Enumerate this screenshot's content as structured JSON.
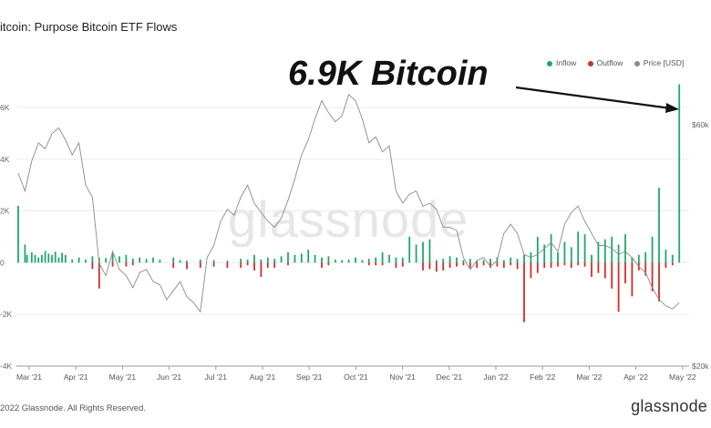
{
  "page": {
    "title": "itcoin: Purpose Bitcoin ETF Flows",
    "annotation": "6.9K Bitcoin",
    "watermark": "glassnode",
    "footer_copyright": "2022 Glassnode. All Rights Reserved.",
    "footer_logo": "glassnode"
  },
  "colors": {
    "inflow": "#1fa86b",
    "outflow": "#d42b2b",
    "price": "#8a8a8a",
    "grid": "#ececec",
    "axis": "#9a9a9a"
  },
  "chart_data": {
    "type": "bar",
    "title": "itcoin: Purpose Bitcoin ETF Flows",
    "legend": {
      "placement": "top-right",
      "entries": [
        "Inflow",
        "Outflow",
        "Price [USD]"
      ]
    },
    "x_ticks": [
      "Mar '21",
      "Apr '21",
      "May '21",
      "Jun '21",
      "Jul '21",
      "Aug '21",
      "Sep '21",
      "Oct '21",
      "Nov '21",
      "Dec '21",
      "Jan '22",
      "Feb '22",
      "Mar '22",
      "Apr '22",
      "May '22"
    ],
    "y_left": {
      "ticks": [
        "6K",
        "4K",
        "2K",
        "0",
        "-2K",
        "-4K"
      ],
      "range": [
        -4000,
        7200
      ]
    },
    "y_right": {
      "ticks": [
        "$60k",
        "$20k"
      ],
      "range": [
        20000,
        68000
      ]
    },
    "grid": true,
    "inflow_points": [
      {
        "week": 0,
        "value": 2200
      },
      {
        "week": 1,
        "value": 700
      },
      {
        "week": 1.3,
        "value": 300
      },
      {
        "week": 2,
        "value": 400
      },
      {
        "week": 2.5,
        "value": 300
      },
      {
        "week": 3,
        "value": 200
      },
      {
        "week": 3.5,
        "value": 300
      },
      {
        "week": 4,
        "value": 450
      },
      {
        "week": 4.5,
        "value": 350
      },
      {
        "week": 5,
        "value": 300
      },
      {
        "week": 5.5,
        "value": 420
      },
      {
        "week": 6,
        "value": 200
      },
      {
        "week": 6.5,
        "value": 380
      },
      {
        "week": 7,
        "value": 300
      },
      {
        "week": 8,
        "value": 120
      },
      {
        "week": 9,
        "value": 200
      },
      {
        "week": 10,
        "value": 120
      },
      {
        "week": 11,
        "value": 250
      },
      {
        "week": 12,
        "value": 200
      },
      {
        "week": 13,
        "value": 180
      },
      {
        "week": 14,
        "value": 350
      },
      {
        "week": 15,
        "value": 250
      },
      {
        "week": 16,
        "value": 300
      },
      {
        "week": 17,
        "value": 160
      },
      {
        "week": 18,
        "value": 200
      },
      {
        "week": 19,
        "value": 150
      },
      {
        "week": 20,
        "value": 200
      },
      {
        "week": 21,
        "value": 120
      },
      {
        "week": 23,
        "value": 200
      },
      {
        "week": 24,
        "value": 100
      },
      {
        "week": 25,
        "value": 80
      },
      {
        "week": 27,
        "value": 120
      },
      {
        "week": 29,
        "value": 100
      },
      {
        "week": 31,
        "value": 80
      },
      {
        "week": 33,
        "value": 150
      },
      {
        "week": 34,
        "value": 120
      },
      {
        "week": 35,
        "value": 300
      },
      {
        "week": 36,
        "value": 120
      },
      {
        "week": 37,
        "value": 200
      },
      {
        "week": 38,
        "value": 150
      },
      {
        "week": 39,
        "value": 250
      },
      {
        "week": 40,
        "value": 400
      },
      {
        "week": 41,
        "value": 300
      },
      {
        "week": 42,
        "value": 350
      },
      {
        "week": 43,
        "value": 500
      },
      {
        "week": 44,
        "value": 300
      },
      {
        "week": 45,
        "value": 200
      },
      {
        "week": 46,
        "value": 250
      },
      {
        "week": 47,
        "value": 120
      },
      {
        "week": 48,
        "value": 100
      },
      {
        "week": 49,
        "value": 120
      },
      {
        "week": 50,
        "value": 200
      },
      {
        "week": 51,
        "value": 100
      },
      {
        "week": 52,
        "value": 150
      },
      {
        "week": 53,
        "value": 200
      },
      {
        "week": 54,
        "value": 400
      },
      {
        "week": 55,
        "value": 300
      },
      {
        "week": 56,
        "value": 200
      },
      {
        "week": 57,
        "value": 200
      },
      {
        "week": 58,
        "value": 1000
      },
      {
        "week": 59,
        "value": 700
      },
      {
        "week": 60,
        "value": 800
      },
      {
        "week": 61,
        "value": 900
      },
      {
        "week": 62,
        "value": 100
      },
      {
        "week": 63,
        "value": 150
      },
      {
        "week": 64,
        "value": 250
      },
      {
        "week": 65,
        "value": 200
      },
      {
        "week": 66,
        "value": 100
      },
      {
        "week": 67,
        "value": 150
      },
      {
        "week": 68,
        "value": 80
      },
      {
        "week": 69,
        "value": 100
      },
      {
        "week": 70,
        "value": 150
      },
      {
        "week": 71,
        "value": 200
      },
      {
        "week": 72,
        "value": 100
      },
      {
        "week": 73,
        "value": 200
      },
      {
        "week": 74,
        "value": 150
      },
      {
        "week": 75,
        "value": 300
      },
      {
        "week": 76,
        "value": 400
      },
      {
        "week": 77,
        "value": 1000
      },
      {
        "week": 78,
        "value": 700
      },
      {
        "week": 79,
        "value": 1100
      },
      {
        "week": 80,
        "value": 400
      },
      {
        "week": 81,
        "value": 800
      },
      {
        "week": 82,
        "value": 600
      },
      {
        "week": 83,
        "value": 1200
      },
      {
        "week": 84,
        "value": 1100
      },
      {
        "week": 85,
        "value": 300
      },
      {
        "week": 86,
        "value": 800
      },
      {
        "week": 87,
        "value": 900
      },
      {
        "week": 88,
        "value": 1000
      },
      {
        "week": 89,
        "value": 700
      },
      {
        "week": 90,
        "value": 1100
      },
      {
        "week": 91,
        "value": 200
      },
      {
        "week": 92,
        "value": 300
      },
      {
        "week": 93,
        "value": 400
      },
      {
        "week": 94,
        "value": 1000
      },
      {
        "week": 95,
        "value": 2900
      },
      {
        "week": 96,
        "value": 500
      },
      {
        "week": 97,
        "value": 300
      },
      {
        "week": 98,
        "value": 6900
      }
    ],
    "outflow_points": [
      {
        "week": 11,
        "value": -250
      },
      {
        "week": 12,
        "value": -1000
      },
      {
        "week": 14,
        "value": -150
      },
      {
        "week": 16,
        "value": -150
      },
      {
        "week": 17,
        "value": -100
      },
      {
        "week": 23,
        "value": -200
      },
      {
        "week": 25,
        "value": -250
      },
      {
        "week": 27,
        "value": -200
      },
      {
        "week": 29,
        "value": -150
      },
      {
        "week": 31,
        "value": -200
      },
      {
        "week": 33,
        "value": -200
      },
      {
        "week": 34,
        "value": -100
      },
      {
        "week": 35,
        "value": -300
      },
      {
        "week": 36,
        "value": -550
      },
      {
        "week": 37,
        "value": -200
      },
      {
        "week": 38,
        "value": -200
      },
      {
        "week": 40,
        "value": -100
      },
      {
        "week": 45,
        "value": -200
      },
      {
        "week": 46,
        "value": -100
      },
      {
        "week": 52,
        "value": -100
      },
      {
        "week": 53,
        "value": -100
      },
      {
        "week": 54,
        "value": -100
      },
      {
        "week": 56,
        "value": -200
      },
      {
        "week": 57,
        "value": -150
      },
      {
        "week": 60,
        "value": -300
      },
      {
        "week": 61,
        "value": -250
      },
      {
        "week": 62,
        "value": -350
      },
      {
        "week": 63,
        "value": -300
      },
      {
        "week": 64,
        "value": -200
      },
      {
        "week": 65,
        "value": -150
      },
      {
        "week": 66,
        "value": -100
      },
      {
        "week": 67,
        "value": -200
      },
      {
        "week": 68,
        "value": -200
      },
      {
        "week": 69,
        "value": -100
      },
      {
        "week": 70,
        "value": -200
      },
      {
        "week": 71,
        "value": -150
      },
      {
        "week": 72,
        "value": -200
      },
      {
        "week": 73,
        "value": -100
      },
      {
        "week": 74,
        "value": -250
      },
      {
        "week": 75,
        "value": -2300
      },
      {
        "week": 76,
        "value": -600
      },
      {
        "week": 77,
        "value": -400
      },
      {
        "week": 78,
        "value": -200
      },
      {
        "week": 79,
        "value": -200
      },
      {
        "week": 80,
        "value": -150
      },
      {
        "week": 81,
        "value": -100
      },
      {
        "week": 82,
        "value": -200
      },
      {
        "week": 83,
        "value": -100
      },
      {
        "week": 84,
        "value": -150
      },
      {
        "week": 85,
        "value": -550
      },
      {
        "week": 86,
        "value": -400
      },
      {
        "week": 87,
        "value": -600
      },
      {
        "week": 88,
        "value": -1000
      },
      {
        "week": 89,
        "value": -1900
      },
      {
        "week": 90,
        "value": -800
      },
      {
        "week": 91,
        "value": -1300
      },
      {
        "week": 92,
        "value": -300
      },
      {
        "week": 93,
        "value": -500
      },
      {
        "week": 94,
        "value": -1100
      },
      {
        "week": 95,
        "value": -1500
      },
      {
        "week": 96,
        "value": -200
      },
      {
        "week": 97,
        "value": -100
      }
    ],
    "price_series": [
      [
        0,
        52000
      ],
      [
        1,
        49000
      ],
      [
        2,
        54000
      ],
      [
        3,
        57000
      ],
      [
        4,
        56000
      ],
      [
        5,
        58500
      ],
      [
        6,
        59500
      ],
      [
        7,
        57500
      ],
      [
        8,
        55000
      ],
      [
        9,
        57000
      ],
      [
        10,
        50000
      ],
      [
        11,
        48000
      ],
      [
        12,
        37000
      ],
      [
        13,
        35000
      ],
      [
        14,
        39000
      ],
      [
        15,
        36000
      ],
      [
        16,
        35000
      ],
      [
        17,
        33000
      ],
      [
        18,
        35500
      ],
      [
        19,
        36000
      ],
      [
        20,
        34000
      ],
      [
        21,
        33500
      ],
      [
        22,
        31000
      ],
      [
        23,
        32500
      ],
      [
        24,
        34000
      ],
      [
        25,
        31500
      ],
      [
        26,
        30500
      ],
      [
        27,
        29000
      ],
      [
        28,
        38000
      ],
      [
        29,
        40000
      ],
      [
        30,
        44000
      ],
      [
        31,
        46000
      ],
      [
        32,
        45000
      ],
      [
        33,
        48000
      ],
      [
        34,
        50000
      ],
      [
        35,
        47000
      ],
      [
        36,
        45500
      ],
      [
        37,
        44000
      ],
      [
        38,
        43000
      ],
      [
        39,
        44500
      ],
      [
        40,
        47500
      ],
      [
        41,
        51000
      ],
      [
        42,
        55000
      ],
      [
        43,
        57500
      ],
      [
        44,
        61000
      ],
      [
        45,
        64000
      ],
      [
        46,
        62000
      ],
      [
        47,
        60500
      ],
      [
        48,
        61500
      ],
      [
        49,
        65000
      ],
      [
        50,
        64000
      ],
      [
        51,
        61000
      ],
      [
        52,
        57000
      ],
      [
        53,
        58000
      ],
      [
        54,
        55500
      ],
      [
        55,
        56500
      ],
      [
        56,
        49000
      ],
      [
        57,
        47000
      ],
      [
        58,
        48500
      ],
      [
        59,
        49000
      ],
      [
        60,
        46500
      ],
      [
        61,
        47000
      ],
      [
        62,
        46000
      ],
      [
        63,
        43000
      ],
      [
        64,
        43000
      ],
      [
        65,
        42500
      ],
      [
        66,
        38000
      ],
      [
        67,
        36000
      ],
      [
        68,
        37500
      ],
      [
        69,
        38000
      ],
      [
        70,
        36500
      ],
      [
        71,
        37500
      ],
      [
        72,
        42000
      ],
      [
        73,
        43500
      ],
      [
        74,
        42000
      ],
      [
        75,
        38500
      ],
      [
        76,
        38000
      ],
      [
        77,
        38500
      ],
      [
        78,
        39500
      ],
      [
        79,
        40500
      ],
      [
        80,
        39000
      ],
      [
        81,
        43500
      ],
      [
        82,
        45500
      ],
      [
        83,
        46500
      ],
      [
        84,
        44000
      ],
      [
        85,
        42000
      ],
      [
        86,
        40000
      ],
      [
        87,
        40000
      ],
      [
        88,
        39500
      ],
      [
        89,
        38500
      ],
      [
        90,
        39000
      ],
      [
        91,
        38000
      ],
      [
        92,
        36500
      ],
      [
        93,
        35500
      ],
      [
        94,
        33000
      ],
      [
        95,
        31000
      ],
      [
        96,
        30000
      ],
      [
        97,
        29500
      ],
      [
        98,
        30500
      ]
    ]
  },
  "legend_labels": {
    "inflow": "Inflow",
    "outflow": "Outflow",
    "price": "Price [USD]"
  }
}
